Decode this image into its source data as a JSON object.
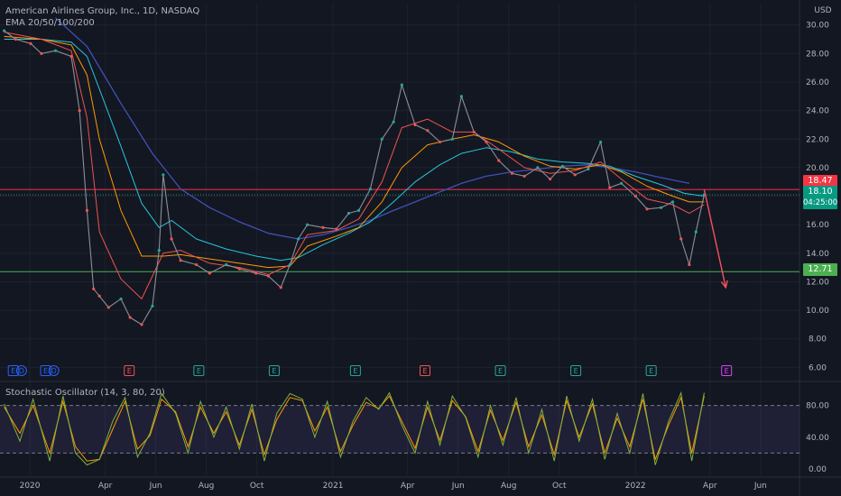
{
  "header": {
    "title": "American Airlines Group, Inc., 1D, NASDAQ",
    "indicator": "EMA 20/50/100/200",
    "currency": "USD"
  },
  "oscillator": {
    "label": "Stochastic Oscillator (14, 3, 80, 20)"
  },
  "price_tags": {
    "resistance": "18.47",
    "last": "18.10",
    "countdown": "04:25:00",
    "support": "12.71"
  },
  "colors": {
    "background": "#131722",
    "up": "#26a69a",
    "down": "#ef5350",
    "resistance": "#f23645",
    "support": "#4caf50",
    "last": "#089981",
    "ema20": "#ef5350",
    "ema50": "#ff9800",
    "ema100": "#26c6da",
    "ema200": "#3f51b5",
    "stoch_k": "#7cb342",
    "stoch_d": "#ff9800",
    "arrow": "#f7525f"
  },
  "events": [
    {
      "x": "2019-12-12",
      "glyph": "E",
      "kind": "earnings-d"
    },
    {
      "x": "2019-12-22",
      "glyph": "D",
      "kind": "dividend"
    },
    {
      "x": "2020-01-20",
      "glyph": "E",
      "kind": "earnings-d"
    },
    {
      "x": "2020-01-30",
      "glyph": "D",
      "kind": "dividend"
    },
    {
      "x": "2020-04-30",
      "glyph": "E",
      "kind": "earnings-neg"
    },
    {
      "x": "2020-07-23",
      "glyph": "E",
      "kind": "earnings"
    },
    {
      "x": "2020-10-22",
      "glyph": "E",
      "kind": "earnings"
    },
    {
      "x": "2021-01-28",
      "glyph": "E",
      "kind": "earnings"
    },
    {
      "x": "2021-04-22",
      "glyph": "E",
      "kind": "earnings-neg"
    },
    {
      "x": "2021-07-22",
      "glyph": "E",
      "kind": "earnings"
    },
    {
      "x": "2021-10-21",
      "glyph": "E",
      "kind": "earnings"
    },
    {
      "x": "2022-01-20",
      "glyph": "E",
      "kind": "earnings"
    },
    {
      "x": "2022-04-21",
      "glyph": "E",
      "kind": "upcoming"
    }
  ],
  "chart_data": {
    "type": "line",
    "title": "American Airlines Group, Inc., 1D, NASDAQ",
    "x_tick_labels": [
      {
        "x": "2020-01-01",
        "label": "2020"
      },
      {
        "x": "2020-04-01",
        "label": "Apr"
      },
      {
        "x": "2020-06-01",
        "label": "Jun"
      },
      {
        "x": "2020-08-01",
        "label": "Aug"
      },
      {
        "x": "2020-10-01",
        "label": "Oct"
      },
      {
        "x": "2021-01-01",
        "label": "2021"
      },
      {
        "x": "2021-04-01",
        "label": "Apr"
      },
      {
        "x": "2021-06-01",
        "label": "Jun"
      },
      {
        "x": "2021-08-01",
        "label": "Aug"
      },
      {
        "x": "2021-10-01",
        "label": "Oct"
      },
      {
        "x": "2022-01-01",
        "label": "2022"
      },
      {
        "x": "2022-04-01",
        "label": "Apr"
      },
      {
        "x": "2022-06-01",
        "label": "Jun"
      }
    ],
    "x_range": [
      "2019-11-26",
      "2022-07-18"
    ],
    "y_ticks": [
      "30.00",
      "28.00",
      "26.00",
      "24.00",
      "22.00",
      "20.00",
      "18.00",
      "16.00",
      "14.00",
      "12.00",
      "10.00",
      "8.00",
      "6.00"
    ],
    "ylim": [
      5.2,
      31.5
    ],
    "series": [
      {
        "name": "Price",
        "role": "price",
        "x": [
          "2019-12-01",
          "2019-12-15",
          "2020-01-02",
          "2020-01-15",
          "2020-02-01",
          "2020-02-20",
          "2020-03-01",
          "2020-03-10",
          "2020-03-18",
          "2020-03-25",
          "2020-04-05",
          "2020-04-20",
          "2020-05-01",
          "2020-05-15",
          "2020-05-28",
          "2020-06-05",
          "2020-06-10",
          "2020-06-20",
          "2020-07-01",
          "2020-07-20",
          "2020-08-05",
          "2020-08-25",
          "2020-09-10",
          "2020-09-30",
          "2020-10-15",
          "2020-10-30",
          "2020-11-10",
          "2020-11-20",
          "2020-12-01",
          "2020-12-20",
          "2021-01-05",
          "2021-01-20",
          "2021-02-01",
          "2021-02-15",
          "2021-03-01",
          "2021-03-15",
          "2021-03-25",
          "2021-04-10",
          "2021-04-25",
          "2021-05-10",
          "2021-05-25",
          "2021-06-05",
          "2021-06-20",
          "2021-07-05",
          "2021-07-20",
          "2021-08-05",
          "2021-08-20",
          "2021-09-05",
          "2021-09-20",
          "2021-10-05",
          "2021-10-20",
          "2021-11-05",
          "2021-11-20",
          "2021-12-01",
          "2021-12-15",
          "2022-01-01",
          "2022-01-15",
          "2022-02-01",
          "2022-02-15",
          "2022-02-25",
          "2022-03-07",
          "2022-03-15",
          "2022-03-25"
        ],
        "values": [
          29.6,
          29.0,
          28.7,
          28.0,
          28.2,
          27.8,
          24.0,
          17.0,
          11.5,
          11.0,
          10.2,
          10.8,
          9.5,
          9.0,
          10.3,
          14.2,
          19.5,
          15.0,
          13.5,
          13.2,
          12.6,
          13.2,
          12.9,
          12.6,
          12.4,
          11.6,
          13.2,
          15.0,
          16.0,
          15.8,
          15.7,
          16.8,
          17.0,
          18.5,
          22.0,
          23.2,
          25.8,
          23.0,
          22.6,
          21.8,
          22.0,
          25.0,
          22.5,
          21.8,
          20.5,
          19.6,
          19.4,
          20.0,
          19.2,
          20.1,
          19.5,
          19.9,
          21.8,
          18.6,
          18.9,
          18.0,
          17.1,
          17.2,
          17.6,
          15.0,
          13.2,
          15.5,
          18.1
        ]
      },
      {
        "name": "EMA 20",
        "role": "ema20",
        "x": [
          "2019-12-01",
          "2020-01-15",
          "2020-02-20",
          "2020-03-10",
          "2020-03-25",
          "2020-04-20",
          "2020-05-15",
          "2020-06-10",
          "2020-07-01",
          "2020-08-05",
          "2020-09-10",
          "2020-10-15",
          "2020-11-10",
          "2020-12-01",
          "2021-01-05",
          "2021-02-01",
          "2021-03-01",
          "2021-03-25",
          "2021-04-25",
          "2021-05-25",
          "2021-06-20",
          "2021-07-20",
          "2021-08-20",
          "2021-09-20",
          "2021-10-20",
          "2021-11-20",
          "2021-12-15",
          "2022-01-15",
          "2022-02-15",
          "2022-03-07",
          "2022-03-25"
        ],
        "values": [
          29.5,
          29.0,
          28.2,
          23.5,
          15.5,
          12.2,
          10.8,
          14.0,
          14.2,
          13.3,
          13.0,
          12.5,
          13.2,
          15.3,
          15.6,
          16.4,
          19.0,
          22.8,
          23.4,
          22.5,
          22.5,
          21.3,
          20.0,
          19.6,
          19.8,
          20.4,
          19.2,
          17.8,
          17.4,
          16.8,
          17.4
        ]
      },
      {
        "name": "EMA 50",
        "role": "ema50",
        "x": [
          "2019-12-01",
          "2020-01-15",
          "2020-02-20",
          "2020-03-10",
          "2020-03-25",
          "2020-04-20",
          "2020-05-15",
          "2020-06-10",
          "2020-07-01",
          "2020-08-05",
          "2020-09-10",
          "2020-10-15",
          "2020-11-10",
          "2020-12-01",
          "2021-01-05",
          "2021-02-01",
          "2021-03-01",
          "2021-03-25",
          "2021-04-25",
          "2021-05-25",
          "2021-06-20",
          "2021-07-20",
          "2021-08-20",
          "2021-09-20",
          "2021-10-20",
          "2021-11-20",
          "2021-12-15",
          "2022-01-15",
          "2022-02-15",
          "2022-03-07",
          "2022-03-25"
        ],
        "values": [
          29.2,
          29.0,
          28.6,
          26.5,
          22.0,
          17.0,
          13.8,
          13.8,
          13.9,
          13.6,
          13.3,
          13.0,
          13.1,
          14.5,
          15.2,
          15.8,
          17.6,
          20.0,
          21.6,
          22.0,
          22.3,
          21.8,
          20.8,
          20.1,
          19.9,
          20.2,
          19.7,
          18.7,
          18.0,
          17.6,
          17.6
        ]
      },
      {
        "name": "EMA 100",
        "role": "ema100",
        "x": [
          "2019-12-01",
          "2020-01-15",
          "2020-02-20",
          "2020-03-10",
          "2020-03-25",
          "2020-04-20",
          "2020-05-15",
          "2020-06-05",
          "2020-06-20",
          "2020-07-20",
          "2020-08-25",
          "2020-09-30",
          "2020-10-30",
          "2020-11-20",
          "2020-12-20",
          "2021-01-20",
          "2021-02-15",
          "2021-03-15",
          "2021-04-10",
          "2021-05-10",
          "2021-06-05",
          "2021-07-05",
          "2021-08-05",
          "2021-09-05",
          "2021-10-05",
          "2021-11-05",
          "2021-12-01",
          "2022-01-01",
          "2022-02-01",
          "2022-03-01",
          "2022-03-25"
        ],
        "values": [
          29.0,
          29.0,
          28.8,
          27.8,
          25.5,
          21.5,
          17.5,
          15.8,
          16.3,
          15.0,
          14.3,
          13.8,
          13.5,
          13.7,
          14.6,
          15.4,
          16.2,
          17.6,
          19.0,
          20.2,
          21.0,
          21.4,
          21.1,
          20.6,
          20.4,
          20.3,
          20.1,
          19.4,
          18.8,
          18.2,
          18.0
        ]
      },
      {
        "name": "EMA 200",
        "role": "ema200",
        "x": [
          "2020-02-01",
          "2020-03-10",
          "2020-04-20",
          "2020-05-28",
          "2020-07-01",
          "2020-08-05",
          "2020-09-10",
          "2020-10-15",
          "2020-11-20",
          "2020-12-20",
          "2021-01-20",
          "2021-02-15",
          "2021-03-15",
          "2021-04-10",
          "2021-05-10",
          "2021-06-05",
          "2021-07-05",
          "2021-08-05",
          "2021-09-05",
          "2021-10-05",
          "2021-11-05",
          "2021-12-01",
          "2022-01-01",
          "2022-02-01",
          "2022-03-07"
        ],
        "values": [
          30.5,
          28.5,
          24.5,
          21.0,
          18.5,
          17.2,
          16.2,
          15.4,
          15.0,
          15.3,
          15.8,
          16.3,
          17.0,
          17.6,
          18.3,
          18.9,
          19.4,
          19.7,
          19.9,
          20.1,
          20.2,
          20.0,
          19.7,
          19.3,
          18.9
        ]
      }
    ],
    "horizontal_lines": [
      {
        "y": 18.47
      },
      {
        "y": 12.71
      }
    ],
    "forecast_arrow": {
      "x": [
        "2022-03-25",
        "2022-04-20"
      ],
      "values": [
        18.47,
        11.6
      ]
    },
    "oscillator": {
      "y_ticks": [
        "80.00",
        "40.00",
        "0.00"
      ],
      "ylim": [
        -8,
        108
      ],
      "bands": [
        80,
        20
      ],
      "k": {
        "x": [
          "2019-12-01",
          "2019-12-20",
          "2020-01-05",
          "2020-01-25",
          "2020-02-10",
          "2020-02-25",
          "2020-03-10",
          "2020-03-25",
          "2020-04-10",
          "2020-04-25",
          "2020-05-10",
          "2020-05-25",
          "2020-06-08",
          "2020-06-25",
          "2020-07-10",
          "2020-07-25",
          "2020-08-10",
          "2020-08-25",
          "2020-09-10",
          "2020-09-25",
          "2020-10-10",
          "2020-10-25",
          "2020-11-10",
          "2020-11-25",
          "2020-12-10",
          "2020-12-25",
          "2021-01-10",
          "2021-01-25",
          "2021-02-10",
          "2021-02-25",
          "2021-03-10",
          "2021-03-25",
          "2021-04-10",
          "2021-04-25",
          "2021-05-10",
          "2021-05-25",
          "2021-06-10",
          "2021-06-25",
          "2021-07-10",
          "2021-07-25",
          "2021-08-10",
          "2021-08-25",
          "2021-09-10",
          "2021-09-25",
          "2021-10-10",
          "2021-10-25",
          "2021-11-10",
          "2021-11-25",
          "2021-12-10",
          "2021-12-25",
          "2022-01-10",
          "2022-01-25",
          "2022-02-10",
          "2022-02-25",
          "2022-03-10",
          "2022-03-25"
        ],
        "values": [
          82,
          35,
          88,
          10,
          92,
          20,
          5,
          12,
          60,
          90,
          15,
          45,
          95,
          70,
          20,
          85,
          40,
          78,
          25,
          82,
          10,
          70,
          95,
          88,
          40,
          85,
          15,
          60,
          90,
          75,
          96,
          55,
          20,
          85,
          30,
          92,
          65,
          15,
          80,
          30,
          90,
          20,
          75,
          10,
          92,
          35,
          88,
          12,
          70,
          20,
          95,
          5,
          60,
          96,
          10,
          96
        ]
      },
      "d": {
        "x": [
          "2019-12-01",
          "2019-12-20",
          "2020-01-05",
          "2020-01-25",
          "2020-02-10",
          "2020-02-25",
          "2020-03-10",
          "2020-03-25",
          "2020-04-10",
          "2020-04-25",
          "2020-05-10",
          "2020-05-25",
          "2020-06-08",
          "2020-06-25",
          "2020-07-10",
          "2020-07-25",
          "2020-08-10",
          "2020-08-25",
          "2020-09-10",
          "2020-09-25",
          "2020-10-10",
          "2020-10-25",
          "2020-11-10",
          "2020-11-25",
          "2020-12-10",
          "2020-12-25",
          "2021-01-10",
          "2021-01-25",
          "2021-02-10",
          "2021-02-25",
          "2021-03-10",
          "2021-03-25",
          "2021-04-10",
          "2021-04-25",
          "2021-05-10",
          "2021-05-25",
          "2021-06-10",
          "2021-06-25",
          "2021-07-10",
          "2021-07-25",
          "2021-08-10",
          "2021-08-25",
          "2021-09-10",
          "2021-09-25",
          "2021-10-10",
          "2021-10-25",
          "2021-11-10",
          "2021-11-25",
          "2021-12-10",
          "2021-12-25",
          "2022-01-10",
          "2022-01-25",
          "2022-02-10",
          "2022-02-25",
          "2022-03-10",
          "2022-03-25"
        ],
        "values": [
          78,
          45,
          80,
          20,
          85,
          28,
          10,
          12,
          50,
          85,
          25,
          42,
          88,
          72,
          28,
          78,
          45,
          72,
          30,
          75,
          18,
          62,
          90,
          86,
          48,
          78,
          22,
          55,
          84,
          76,
          92,
          60,
          26,
          78,
          36,
          86,
          66,
          22,
          74,
          36,
          84,
          28,
          68,
          18,
          86,
          40,
          82,
          20,
          64,
          28,
          88,
          12,
          55,
          90,
          20,
          92
        ]
      }
    }
  }
}
